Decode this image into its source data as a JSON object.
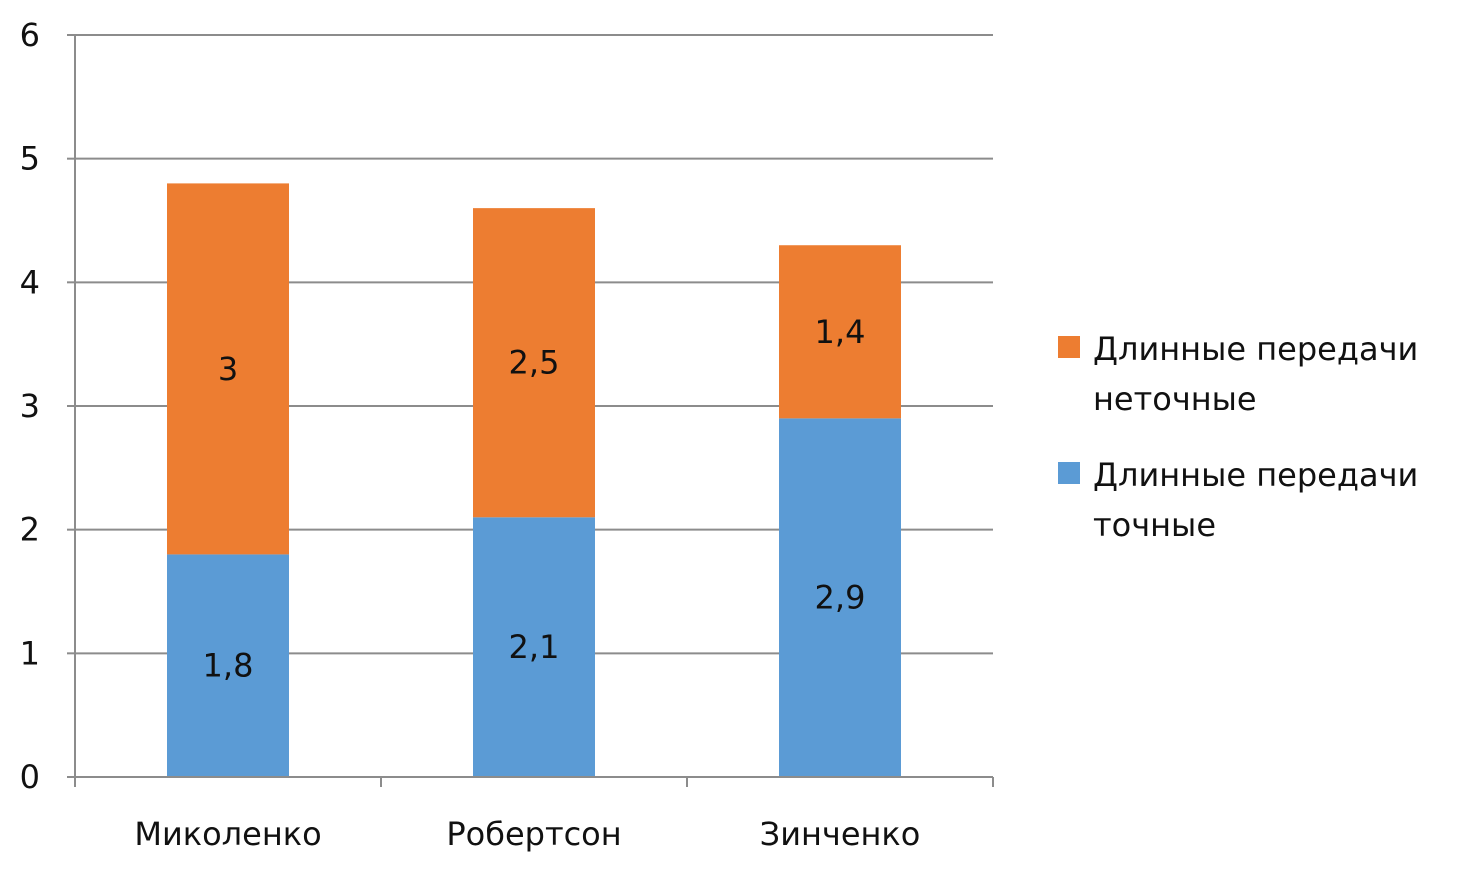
{
  "chart_data": {
    "type": "bar",
    "stacked": true,
    "categories": [
      "Миколенко",
      "Робертсон",
      "Зинченко"
    ],
    "series": [
      {
        "name": "Длинные передачи точные",
        "values": [
          1.8,
          2.1,
          2.9
        ],
        "labels": [
          "1,8",
          "2,1",
          "2,9"
        ],
        "color": "#5b9bd5"
      },
      {
        "name": "Длинные передачи неточные",
        "values": [
          3,
          2.5,
          1.4
        ],
        "labels": [
          "3",
          "2,5",
          "1,4"
        ],
        "color": "#ed7d31"
      }
    ],
    "ylim": [
      0,
      6
    ],
    "yticks": [
      0,
      1,
      2,
      3,
      4,
      5,
      6
    ],
    "title": "",
    "xlabel": "",
    "ylabel": "",
    "grid": true,
    "legend": {
      "position": "right",
      "entries": [
        {
          "series": 1,
          "lines": [
            "Длинные передачи",
            "неточные"
          ]
        },
        {
          "series": 0,
          "lines": [
            "Длинные передачи",
            "точные"
          ]
        }
      ]
    }
  }
}
